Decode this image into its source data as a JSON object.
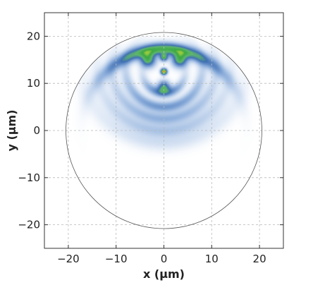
{
  "chart_data": {
    "type": "heatmap",
    "title": "",
    "xlabel": "x (μm)",
    "ylabel": "y (μm)",
    "xlim": [
      -25,
      25
    ],
    "ylim": [
      -25,
      25
    ],
    "x_ticks": [
      -20,
      -10,
      0,
      10,
      20
    ],
    "y_ticks": [
      -20,
      -10,
      0,
      10,
      20
    ],
    "x_tick_labels": [
      "−20",
      "−10",
      "0",
      "10",
      "20"
    ],
    "y_tick_labels": [
      "−20",
      "−10",
      "0",
      "10",
      "20"
    ],
    "grid": true,
    "circle": {
      "center": [
        0,
        0
      ],
      "radius": 20.5
    },
    "colormap": [
      "#ffffff",
      "#dbe6f5",
      "#8fb0dc",
      "#3f6fb3",
      "#5fb86b",
      "#3aa845",
      "#f3ea3c",
      "#e34a33"
    ],
    "intensity_features": [
      {
        "shape": "spot",
        "center": [
          0,
          12.5
        ],
        "sigma": 0.45,
        "peak": 1.0
      },
      {
        "shape": "spot",
        "center": [
          0,
          15.5
        ],
        "sigma": 0.55,
        "peak": 0.6
      },
      {
        "shape": "spot",
        "center": [
          -3.3,
          15.0
        ],
        "sigma": 1.1,
        "peak": 0.62
      },
      {
        "shape": "spot",
        "center": [
          3.3,
          15.0
        ],
        "sigma": 1.1,
        "peak": 0.62
      },
      {
        "shape": "spot",
        "center": [
          0,
          9.3
        ],
        "sigma": 0.9,
        "peak": 0.52
      },
      {
        "shape": "ring",
        "center": [
          0,
          0
        ],
        "radius": 17.3,
        "sigma": 0.9,
        "peak": 0.7,
        "angle_center_deg": 90,
        "angle_width_deg": 30
      },
      {
        "shape": "ring",
        "center": [
          0,
          12.5
        ],
        "radius": 4.5,
        "sigma": 0.7,
        "peak": 0.38,
        "angle_center_deg": -90,
        "angle_width_deg": 50
      },
      {
        "shape": "ring",
        "center": [
          0,
          13.0
        ],
        "radius": 8.0,
        "sigma": 0.8,
        "peak": 0.32,
        "angle_center_deg": -90,
        "angle_width_deg": 65
      },
      {
        "shape": "ring",
        "center": [
          0,
          13.5
        ],
        "radius": 11.0,
        "sigma": 0.9,
        "peak": 0.24,
        "angle_center_deg": -90,
        "angle_width_deg": 60
      },
      {
        "shape": "ring",
        "center": [
          0,
          14.0
        ],
        "radius": 14.0,
        "sigma": 1.0,
        "peak": 0.17,
        "angle_center_deg": -90,
        "angle_width_deg": 55
      },
      {
        "shape": "ring",
        "center": [
          0,
          15.0
        ],
        "radius": 17.5,
        "sigma": 1.3,
        "peak": 0.1,
        "angle_center_deg": -90,
        "angle_width_deg": 50
      }
    ]
  }
}
